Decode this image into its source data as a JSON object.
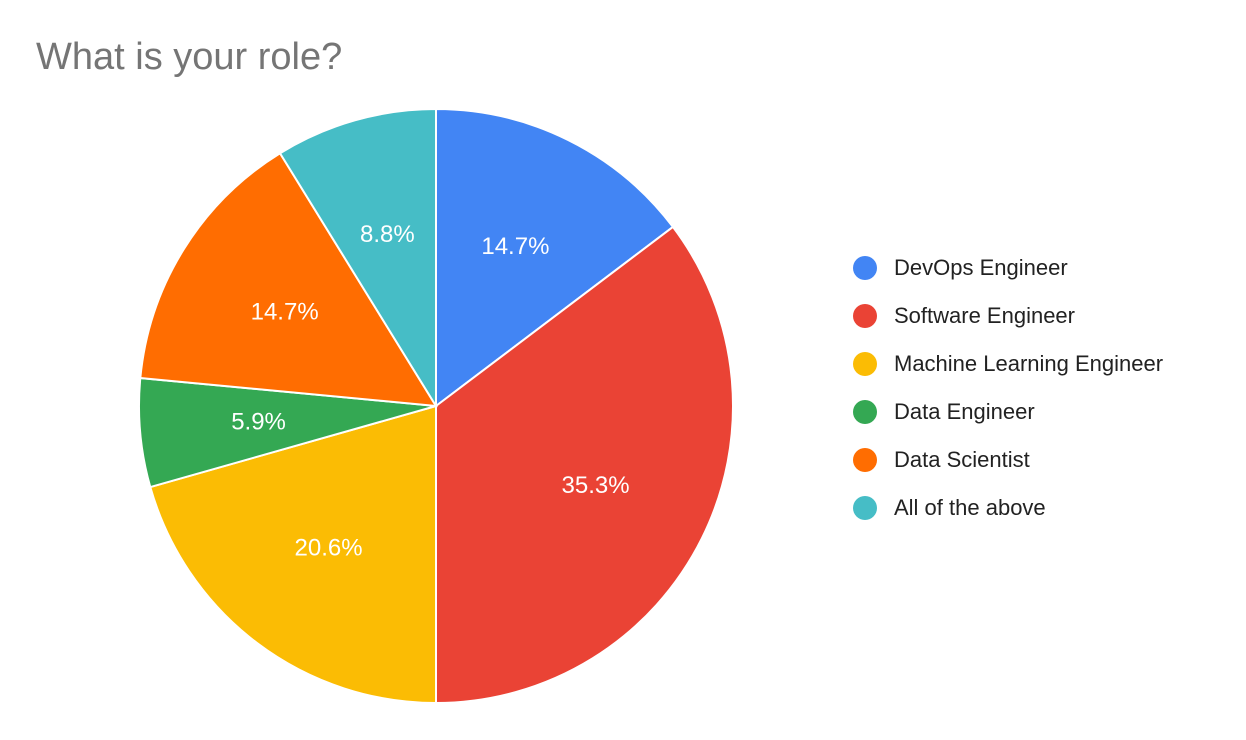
{
  "chart_data": {
    "type": "pie",
    "title": "What is your role?",
    "categories": [
      "DevOps Engineer",
      "Software Engineer",
      "Machine Learning Engineer",
      "Data Engineer",
      "Data Scientist",
      "All of the above"
    ],
    "values": [
      14.7,
      35.3,
      20.6,
      5.9,
      14.7,
      8.8
    ],
    "value_labels": [
      "14.7%",
      "35.3%",
      "20.6%",
      "5.9%",
      "14.7%",
      "8.8%"
    ],
    "colors": [
      "#4285F4",
      "#EA4335",
      "#FBBC04",
      "#34A853",
      "#FF6D01",
      "#46BDC6"
    ],
    "legend_position": "right"
  }
}
